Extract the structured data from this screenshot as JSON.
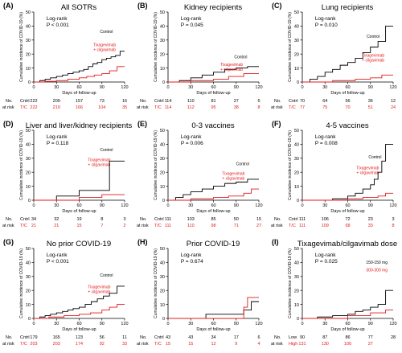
{
  "chart_data": [
    {
      "type": "line",
      "step": true,
      "panel_label": "(A)",
      "title": "All SOTRs",
      "stat": [
        "Log-rank",
        "P < 0.001"
      ],
      "xlabel": "Days of follow-up",
      "ylabel": "Cumulative incidence of COVID-19 (%)",
      "xlim": [
        0,
        120
      ],
      "ylim": [
        0,
        50
      ],
      "xticks": [
        0,
        30,
        60,
        90,
        120
      ],
      "yticks": [
        0,
        10,
        20,
        30,
        40,
        50
      ],
      "series": [
        {
          "name": "Control",
          "color": "#000000",
          "x": [
            0,
            8,
            15,
            22,
            30,
            38,
            45,
            52,
            60,
            66,
            72,
            78,
            84,
            90,
            96,
            102,
            108,
            114,
            120
          ],
          "y": [
            0,
            1,
            2,
            3,
            4,
            5,
            6,
            7,
            8,
            9,
            11,
            13,
            14,
            16,
            17,
            18,
            19,
            22,
            22
          ]
        },
        {
          "name": "Tixagevimab + cilgavimab",
          "color": "#e41a1c",
          "x": [
            0,
            15,
            30,
            45,
            60,
            70,
            80,
            90,
            100,
            110,
            120
          ],
          "y": [
            0,
            0.5,
            1,
            2,
            3,
            4,
            5,
            6,
            8,
            11,
            11
          ]
        }
      ],
      "series_labels": [
        [
          "Control"
        ],
        [
          "Tixagevimab",
          "+ cilgavimab"
        ]
      ],
      "risk_table": {
        "header": [
          "No.",
          "at risk"
        ],
        "rows": [
          {
            "label": "Cntrl",
            "color": "#000000",
            "values": [
              "222",
              "209",
              "157",
              "73",
              "16"
            ]
          },
          {
            "label": "T/C",
            "color": "#e41a1c",
            "values": [
              "222",
              "219",
              "166",
              "104",
              "35"
            ]
          }
        ]
      }
    },
    {
      "type": "line",
      "step": true,
      "panel_label": "(B)",
      "title": "Kidney recipients",
      "stat": [
        "Log-rank",
        "P = 0.045"
      ],
      "xlabel": "Days of follow-up",
      "ylabel": "Cumulative incidence of COVID-19 (%)",
      "xlim": [
        0,
        120
      ],
      "ylim": [
        0,
        50
      ],
      "xticks": [
        0,
        30,
        60,
        90,
        120
      ],
      "yticks": [
        0,
        10,
        20,
        30,
        40,
        50
      ],
      "series": [
        {
          "name": "Control",
          "color": "#000000",
          "x": [
            0,
            15,
            30,
            45,
            60,
            75,
            90,
            105,
            120
          ],
          "y": [
            0,
            1,
            3,
            5,
            7,
            9,
            10,
            11,
            11
          ]
        },
        {
          "name": "Tixagevimab + cilgavimab",
          "color": "#e41a1c",
          "x": [
            0,
            30,
            60,
            80,
            100,
            120
          ],
          "y": [
            0,
            1,
            2,
            4,
            6,
            6
          ]
        }
      ],
      "series_labels": [
        [
          "Control"
        ],
        [
          "Tixagevimab",
          "+ cilgavimab"
        ]
      ],
      "risk_table": {
        "header": [
          "No.",
          "at risk"
        ],
        "rows": [
          {
            "label": "Cntrl",
            "color": "#000000",
            "values": [
              "114",
              "110",
              "81",
              "27",
              "5"
            ]
          },
          {
            "label": "T/C",
            "color": "#e41a1c",
            "values": [
              "114",
              "112",
              "95",
              "38",
              "8"
            ]
          }
        ]
      }
    },
    {
      "type": "line",
      "step": true,
      "panel_label": "(C)",
      "title": "Lung recipients",
      "stat": [
        "Log-rank",
        "P = 0.010"
      ],
      "xlabel": "Days of follow-up",
      "ylabel": "Cumulative incidence of COVID-19 (%)",
      "xlim": [
        0,
        120
      ],
      "ylim": [
        0,
        50
      ],
      "xticks": [
        0,
        30,
        60,
        90,
        120
      ],
      "yticks": [
        0,
        10,
        20,
        30,
        40,
        50
      ],
      "series": [
        {
          "name": "Control",
          "color": "#000000",
          "x": [
            0,
            10,
            20,
            30,
            40,
            50,
            60,
            70,
            80,
            90,
            100,
            110,
            120
          ],
          "y": [
            0,
            2,
            4,
            7,
            9,
            12,
            14,
            17,
            21,
            25,
            29,
            40,
            40
          ]
        },
        {
          "name": "Tixagevimab + cilgavimab",
          "color": "#e41a1c",
          "x": [
            0,
            40,
            70,
            90,
            105,
            120
          ],
          "y": [
            0,
            1,
            2,
            3,
            5,
            5
          ]
        }
      ],
      "series_labels": [
        [
          "Control"
        ],
        [
          "Tixagevimab",
          "+ cilgavimab"
        ]
      ],
      "risk_table": {
        "header": [
          "No.",
          "at risk"
        ],
        "rows": [
          {
            "label": "Cntrl",
            "color": "#000000",
            "values": [
              "70",
              "64",
              "56",
              "36",
              "12"
            ]
          },
          {
            "label": "T/C",
            "color": "#e41a1c",
            "values": [
              "77",
              "75",
              "70",
              "51",
              "24"
            ]
          }
        ]
      }
    },
    {
      "type": "line",
      "step": true,
      "panel_label": "(D)",
      "title": "Liver and liver/kidney recipients",
      "stat": [
        "Log-rank",
        "P = 0.118"
      ],
      "xlabel": "Days of follow-up",
      "ylabel": "Cumulative incidence of COVID-19 (%)",
      "xlim": [
        0,
        120
      ],
      "ylim": [
        0,
        50
      ],
      "xticks": [
        0,
        30,
        60,
        90,
        120
      ],
      "yticks": [
        0,
        10,
        20,
        30,
        40,
        50
      ],
      "series": [
        {
          "name": "Control",
          "color": "#000000",
          "x": [
            0,
            30,
            60,
            100,
            120
          ],
          "y": [
            0,
            3,
            7,
            28,
            28
          ]
        },
        {
          "name": "Tixagevimab + cilgavimab",
          "color": "#e41a1c",
          "x": [
            0,
            60,
            90,
            120
          ],
          "y": [
            0,
            2,
            4,
            4
          ]
        }
      ],
      "series_labels": [
        [
          "Control"
        ],
        [
          "Tixagevimab",
          "+ cilgavimab"
        ]
      ],
      "risk_table": {
        "header": [
          "No.",
          "at risk"
        ],
        "rows": [
          {
            "label": "Cntrl",
            "color": "#000000",
            "values": [
              "34",
              "32",
              "19",
              "8",
              "3"
            ]
          },
          {
            "label": "T/C",
            "color": "#e41a1c",
            "values": [
              "21",
              "21",
              "15",
              "7",
              "2"
            ]
          }
        ]
      }
    },
    {
      "type": "line",
      "step": true,
      "panel_label": "(E)",
      "title": "0-3 vaccines",
      "stat": [
        "Log-rank",
        "P = 0.006"
      ],
      "xlabel": "Days of follow-up",
      "ylabel": "Cumulative incidence of COVID-19 (%)",
      "xlim": [
        0,
        120
      ],
      "ylim": [
        0,
        50
      ],
      "xticks": [
        0,
        30,
        60,
        90,
        120
      ],
      "yticks": [
        0,
        10,
        20,
        30,
        40,
        50
      ],
      "series": [
        {
          "name": "Control",
          "color": "#000000",
          "x": [
            0,
            10,
            20,
            30,
            45,
            60,
            75,
            90,
            105,
            120
          ],
          "y": [
            0,
            2,
            4,
            6,
            8,
            10,
            12,
            13,
            15,
            15
          ]
        },
        {
          "name": "Tixagevimab + cilgavimab",
          "color": "#e41a1c",
          "x": [
            0,
            30,
            60,
            80,
            100,
            110,
            120
          ],
          "y": [
            0,
            1,
            2,
            3,
            5,
            8,
            8
          ]
        }
      ],
      "series_labels": [
        [
          "Control"
        ],
        [
          "Tixagevimab",
          "+ cilgavimab"
        ]
      ],
      "risk_table": {
        "header": [
          "No.",
          "at risk"
        ],
        "rows": [
          {
            "label": "Cntrl",
            "color": "#000000",
            "values": [
              "111",
              "103",
              "85",
              "50",
              "15"
            ]
          },
          {
            "label": "T/C",
            "color": "#e41a1c",
            "values": [
              "111",
              "110",
              "98",
              "71",
              "27"
            ]
          }
        ]
      }
    },
    {
      "type": "line",
      "step": true,
      "panel_label": "(F)",
      "title": "4-5 vaccines",
      "stat": [
        "Log-rank",
        "P = 0.008"
      ],
      "xlabel": "Days of follow-up",
      "ylabel": "Cumulative incidence of COVID-19 (%)",
      "xlim": [
        0,
        120
      ],
      "ylim": [
        0,
        50
      ],
      "xticks": [
        0,
        30,
        60,
        90,
        120
      ],
      "yticks": [
        0,
        10,
        20,
        30,
        40,
        50
      ],
      "series": [
        {
          "name": "Control",
          "color": "#000000",
          "x": [
            0,
            40,
            60,
            70,
            80,
            90,
            95,
            100,
            105,
            110,
            120
          ],
          "y": [
            0,
            1,
            3,
            5,
            8,
            11,
            15,
            20,
            28,
            40,
            40
          ]
        },
        {
          "name": "Tixagevimab + cilgavimab",
          "color": "#e41a1c",
          "x": [
            0,
            60,
            80,
            100,
            110,
            120
          ],
          "y": [
            0,
            1,
            2,
            3,
            5,
            5
          ]
        }
      ],
      "series_labels": [
        [
          "Control"
        ],
        [
          "Tixagevimab",
          "+ cilgavimab"
        ]
      ],
      "risk_table": {
        "header": [
          "No.",
          "at risk"
        ],
        "rows": [
          {
            "label": "Cntrl",
            "color": "#000000",
            "values": [
              "111",
              "106",
              "72",
              "23",
              "3"
            ]
          },
          {
            "label": "T/C",
            "color": "#e41a1c",
            "values": [
              "111",
              "109",
              "68",
              "33",
              "8"
            ]
          }
        ]
      }
    },
    {
      "type": "line",
      "step": true,
      "panel_label": "(G)",
      "title": "No prior COVID-19",
      "stat": [
        "Log-rank",
        "P < 0.001"
      ],
      "xlabel": "Days of follow-up",
      "ylabel": "Cumulative incidence of COVID-19 (%)",
      "xlim": [
        0,
        120
      ],
      "ylim": [
        0,
        50
      ],
      "xticks": [
        0,
        30,
        60,
        90,
        120
      ],
      "yticks": [
        0,
        10,
        20,
        30,
        40,
        50
      ],
      "series": [
        {
          "name": "Control",
          "color": "#000000",
          "x": [
            0,
            8,
            15,
            22,
            30,
            38,
            45,
            52,
            60,
            68,
            76,
            84,
            92,
            100,
            110,
            120
          ],
          "y": [
            0,
            1,
            2,
            3,
            4,
            5,
            6,
            7,
            8,
            10,
            12,
            14,
            16,
            18,
            23,
            23
          ]
        },
        {
          "name": "Tixagevimab + cilgavimab",
          "color": "#e41a1c",
          "x": [
            0,
            20,
            40,
            60,
            75,
            90,
            100,
            110,
            120
          ],
          "y": [
            0,
            1,
            2,
            3,
            4,
            6,
            8,
            10,
            10
          ]
        }
      ],
      "series_labels": [
        [
          "Control"
        ],
        [
          "Tixagevimab",
          "+ cilgavimab"
        ]
      ],
      "risk_table": {
        "header": [
          "No.",
          "at risk"
        ],
        "rows": [
          {
            "label": "Cntrl",
            "color": "#000000",
            "values": [
              "179",
              "165",
              "123",
              "56",
              "11"
            ]
          },
          {
            "label": "T/C",
            "color": "#e41a1c",
            "values": [
              "203",
              "203",
              "174",
              "92",
              "33"
            ]
          }
        ]
      }
    },
    {
      "type": "line",
      "step": true,
      "panel_label": "(H)",
      "title": "Prior COVID-19",
      "stat": [
        "Log-rank",
        "P = 0.674"
      ],
      "xlabel": "Days of follow-up",
      "ylabel": "Cumulative incidence of COVID-19 (%)",
      "xlim": [
        0,
        120
      ],
      "ylim": [
        0,
        50
      ],
      "xticks": [
        0,
        30,
        60,
        90,
        120
      ],
      "yticks": [
        0,
        10,
        20,
        30,
        40,
        50
      ],
      "series": [
        {
          "name": "Control",
          "color": "#000000",
          "x": [
            0,
            50,
            100,
            110,
            120
          ],
          "y": [
            0,
            3,
            6,
            12,
            12
          ]
        },
        {
          "name": "Tixagevimab + cilgavimab",
          "color": "#e41a1c",
          "x": [
            0,
            100,
            105,
            120
          ],
          "y": [
            0,
            8,
            15,
            15
          ]
        }
      ],
      "series_labels": [],
      "risk_table": {
        "header": [
          "No.",
          "at risk"
        ],
        "rows": [
          {
            "label": "Cntrl",
            "color": "#000000",
            "values": [
              "43",
              "43",
              "34",
              "17",
              "6"
            ]
          },
          {
            "label": "T/C",
            "color": "#e41a1c",
            "values": [
              "15",
              "15",
              "12",
              "9",
              "4"
            ]
          }
        ]
      }
    },
    {
      "type": "line",
      "step": true,
      "panel_label": "(I)",
      "title": "Tixagevimab/cilgavimab  dose",
      "stat": [
        "Log-rank",
        "P = 0.025"
      ],
      "xlabel": "Days of follow-up",
      "ylabel": "Cumulative incidence of COVID-19 (%)",
      "xlim": [
        0,
        120
      ],
      "ylim": [
        0,
        50
      ],
      "xticks": [
        0,
        30,
        60,
        90,
        120
      ],
      "yticks": [
        0,
        10,
        20,
        30,
        40,
        50
      ],
      "series": [
        {
          "name": "150-150 mg",
          "color": "#000000",
          "x": [
            0,
            20,
            40,
            60,
            70,
            80,
            90,
            100,
            110,
            120
          ],
          "y": [
            0,
            1,
            2,
            3,
            5,
            6,
            8,
            10,
            20,
            20
          ]
        },
        {
          "name": "300-300 mg",
          "color": "#e41a1c",
          "x": [
            0,
            60,
            90,
            110,
            120
          ],
          "y": [
            0,
            2,
            4,
            6,
            6
          ]
        }
      ],
      "series_labels": [
        [
          "150-150 mg"
        ],
        [
          "300-300 mg"
        ]
      ],
      "risk_table": {
        "header": [
          "No.",
          "at risk"
        ],
        "rows": [
          {
            "label": "Low",
            "color": "#000000",
            "values": [
              "90",
              "87",
              "86",
              "77",
              "28"
            ]
          },
          {
            "label": "High",
            "color": "#e41a1c",
            "values": [
              "131",
              "130",
              "100",
              "27",
              ""
            ]
          }
        ]
      }
    }
  ]
}
